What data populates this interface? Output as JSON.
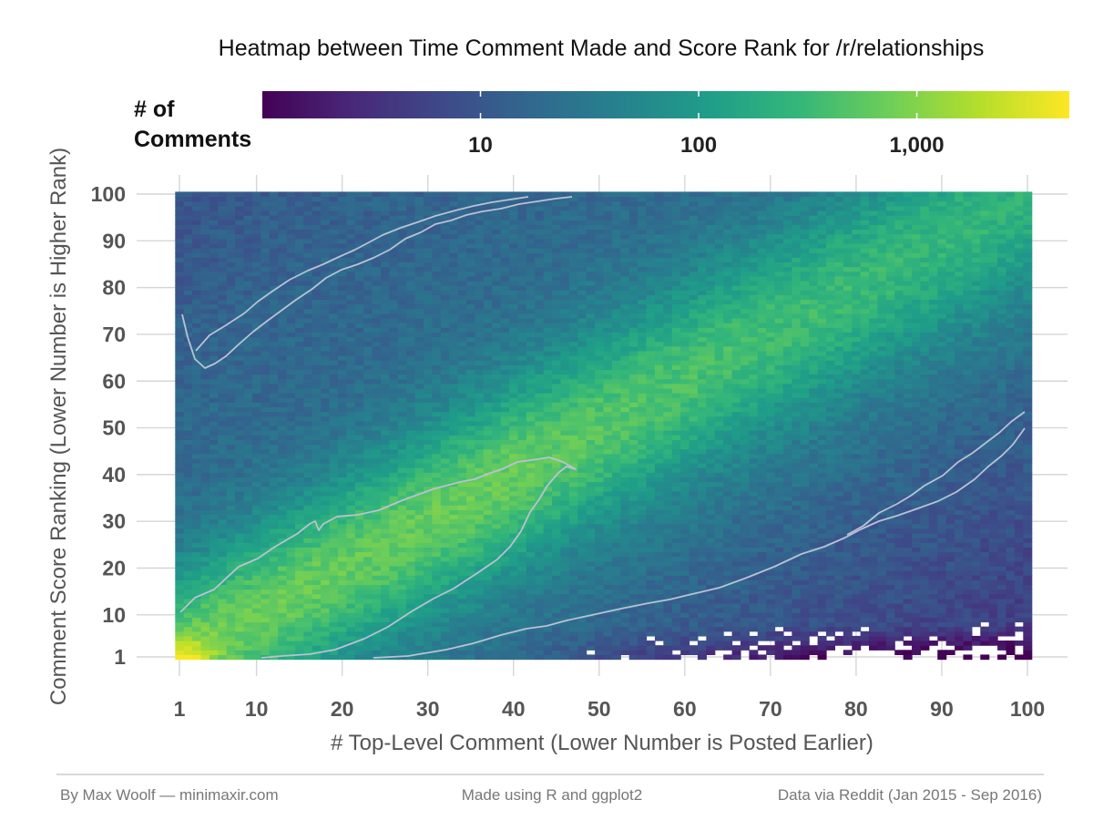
{
  "chart_data": {
    "type": "heatmap",
    "title": "Heatmap between Time Comment Made and Score Rank for /r/relationships",
    "xlabel": "# Top-Level Comment (Lower Number is Posted Earlier)",
    "ylabel": "Comment Score Ranking (Lower Number is Higher Rank)",
    "x_ticks": [
      "1",
      "10",
      "20",
      "30",
      "40",
      "50",
      "60",
      "70",
      "80",
      "90",
      "100"
    ],
    "y_ticks": [
      "1",
      "10",
      "20",
      "30",
      "40",
      "50",
      "60",
      "70",
      "80",
      "90",
      "100"
    ],
    "xlim": [
      1,
      100
    ],
    "ylim": [
      1,
      100
    ],
    "grid": true,
    "color_scale": {
      "name": "viridis",
      "scale": "log",
      "legend_title_lines": [
        "# of",
        "Comments"
      ],
      "tick_labels": [
        "10",
        "100",
        "1,000"
      ],
      "tick_values": [
        10,
        100,
        1000
      ],
      "range": [
        1,
        5000
      ],
      "legend_position": "top"
    },
    "contour_levels_approx": [
      30,
      100
    ],
    "value_estimates": [
      {
        "x": 1,
        "y": 1,
        "count": 5000
      },
      {
        "x": 10,
        "y": 10,
        "count": 900
      },
      {
        "x": 25,
        "y": 25,
        "count": 500
      },
      {
        "x": 45,
        "y": 45,
        "count": 150
      },
      {
        "x": 60,
        "y": 60,
        "count": 100
      },
      {
        "x": 50,
        "y": 90,
        "count": 60
      },
      {
        "x": 5,
        "y": 95,
        "count": 15
      },
      {
        "x": 90,
        "y": 20,
        "count": 25
      },
      {
        "x": 95,
        "y": 5,
        "count": 2
      }
    ]
  },
  "captions": {
    "left": "By Max Woolf — minimaxir.com",
    "center": "Made using R and ggplot2",
    "right": "Data via Reddit (Jan 2015 - Sep 2016)"
  },
  "colors": {
    "contour": "#b9c2d3",
    "grid": "#d6d6d6",
    "viridis_stops": [
      "#440154",
      "#482878",
      "#3e4989",
      "#31688e",
      "#26828e",
      "#1f9e89",
      "#35b779",
      "#6ece58",
      "#b5de2b",
      "#fde725"
    ]
  }
}
